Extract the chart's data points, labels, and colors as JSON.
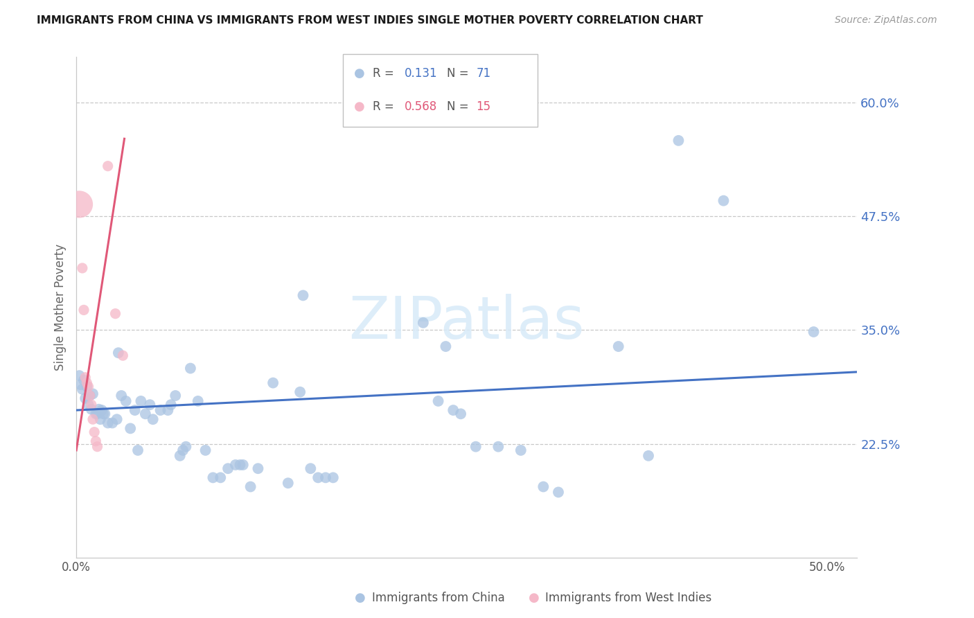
{
  "title": "IMMIGRANTS FROM CHINA VS IMMIGRANTS FROM WEST INDIES SINGLE MOTHER POVERTY CORRELATION CHART",
  "source": "Source: ZipAtlas.com",
  "ylabel": "Single Mother Poverty",
  "yticks": [
    0.225,
    0.35,
    0.475,
    0.6
  ],
  "ytick_labels": [
    "22.5%",
    "35.0%",
    "47.5%",
    "60.0%"
  ],
  "xlim": [
    0.0,
    0.52
  ],
  "ylim": [
    0.1,
    0.65
  ],
  "legend_china_R": "0.131",
  "legend_china_N": "71",
  "legend_wi_R": "0.568",
  "legend_wi_N": "15",
  "china_color": "#aac4e2",
  "wi_color": "#f5b8c8",
  "china_line_color": "#4472c4",
  "wi_line_color": "#e05878",
  "china_scatter": [
    [
      0.002,
      0.3
    ],
    [
      0.003,
      0.29
    ],
    [
      0.004,
      0.285
    ],
    [
      0.005,
      0.295
    ],
    [
      0.006,
      0.275
    ],
    [
      0.007,
      0.288
    ],
    [
      0.008,
      0.268
    ],
    [
      0.009,
      0.278
    ],
    [
      0.01,
      0.263
    ],
    [
      0.011,
      0.28
    ],
    [
      0.013,
      0.258
    ],
    [
      0.014,
      0.258
    ],
    [
      0.015,
      0.263
    ],
    [
      0.016,
      0.252
    ],
    [
      0.017,
      0.262
    ],
    [
      0.018,
      0.258
    ],
    [
      0.019,
      0.258
    ],
    [
      0.021,
      0.248
    ],
    [
      0.024,
      0.248
    ],
    [
      0.027,
      0.252
    ],
    [
      0.028,
      0.325
    ],
    [
      0.03,
      0.278
    ],
    [
      0.033,
      0.272
    ],
    [
      0.036,
      0.242
    ],
    [
      0.039,
      0.262
    ],
    [
      0.041,
      0.218
    ],
    [
      0.043,
      0.272
    ],
    [
      0.046,
      0.258
    ],
    [
      0.049,
      0.268
    ],
    [
      0.051,
      0.252
    ],
    [
      0.056,
      0.262
    ],
    [
      0.061,
      0.262
    ],
    [
      0.063,
      0.268
    ],
    [
      0.066,
      0.278
    ],
    [
      0.069,
      0.212
    ],
    [
      0.071,
      0.218
    ],
    [
      0.073,
      0.222
    ],
    [
      0.076,
      0.308
    ],
    [
      0.081,
      0.272
    ],
    [
      0.086,
      0.218
    ],
    [
      0.091,
      0.188
    ],
    [
      0.096,
      0.188
    ],
    [
      0.101,
      0.198
    ],
    [
      0.106,
      0.202
    ],
    [
      0.109,
      0.202
    ],
    [
      0.111,
      0.202
    ],
    [
      0.116,
      0.178
    ],
    [
      0.121,
      0.198
    ],
    [
      0.131,
      0.292
    ],
    [
      0.141,
      0.182
    ],
    [
      0.149,
      0.282
    ],
    [
      0.151,
      0.388
    ],
    [
      0.156,
      0.198
    ],
    [
      0.161,
      0.188
    ],
    [
      0.166,
      0.188
    ],
    [
      0.171,
      0.188
    ],
    [
      0.231,
      0.358
    ],
    [
      0.241,
      0.272
    ],
    [
      0.246,
      0.332
    ],
    [
      0.251,
      0.262
    ],
    [
      0.256,
      0.258
    ],
    [
      0.266,
      0.222
    ],
    [
      0.281,
      0.222
    ],
    [
      0.296,
      0.218
    ],
    [
      0.311,
      0.178
    ],
    [
      0.321,
      0.172
    ],
    [
      0.361,
      0.332
    ],
    [
      0.381,
      0.212
    ],
    [
      0.401,
      0.558
    ],
    [
      0.431,
      0.492
    ],
    [
      0.491,
      0.348
    ]
  ],
  "wi_scatter": [
    [
      0.002,
      0.488
    ],
    [
      0.004,
      0.418
    ],
    [
      0.005,
      0.372
    ],
    [
      0.006,
      0.298
    ],
    [
      0.007,
      0.292
    ],
    [
      0.008,
      0.288
    ],
    [
      0.009,
      0.278
    ],
    [
      0.01,
      0.268
    ],
    [
      0.011,
      0.252
    ],
    [
      0.012,
      0.238
    ],
    [
      0.013,
      0.228
    ],
    [
      0.014,
      0.222
    ],
    [
      0.021,
      0.53
    ],
    [
      0.026,
      0.368
    ],
    [
      0.031,
      0.322
    ]
  ],
  "wi_sizes": [
    800,
    120,
    120,
    120,
    120,
    120,
    120,
    120,
    120,
    120,
    120,
    120,
    120,
    120,
    120
  ],
  "china_trend_x": [
    0.0,
    0.52
  ],
  "china_trend_y": [
    0.262,
    0.304
  ],
  "wi_trend_x": [
    0.0,
    0.032
  ],
  "wi_trend_y": [
    0.218,
    0.56
  ],
  "background_color": "#ffffff",
  "grid_color": "#c8c8c8",
  "watermark": "ZIPatlas",
  "watermark_color": "#d8eaf8"
}
